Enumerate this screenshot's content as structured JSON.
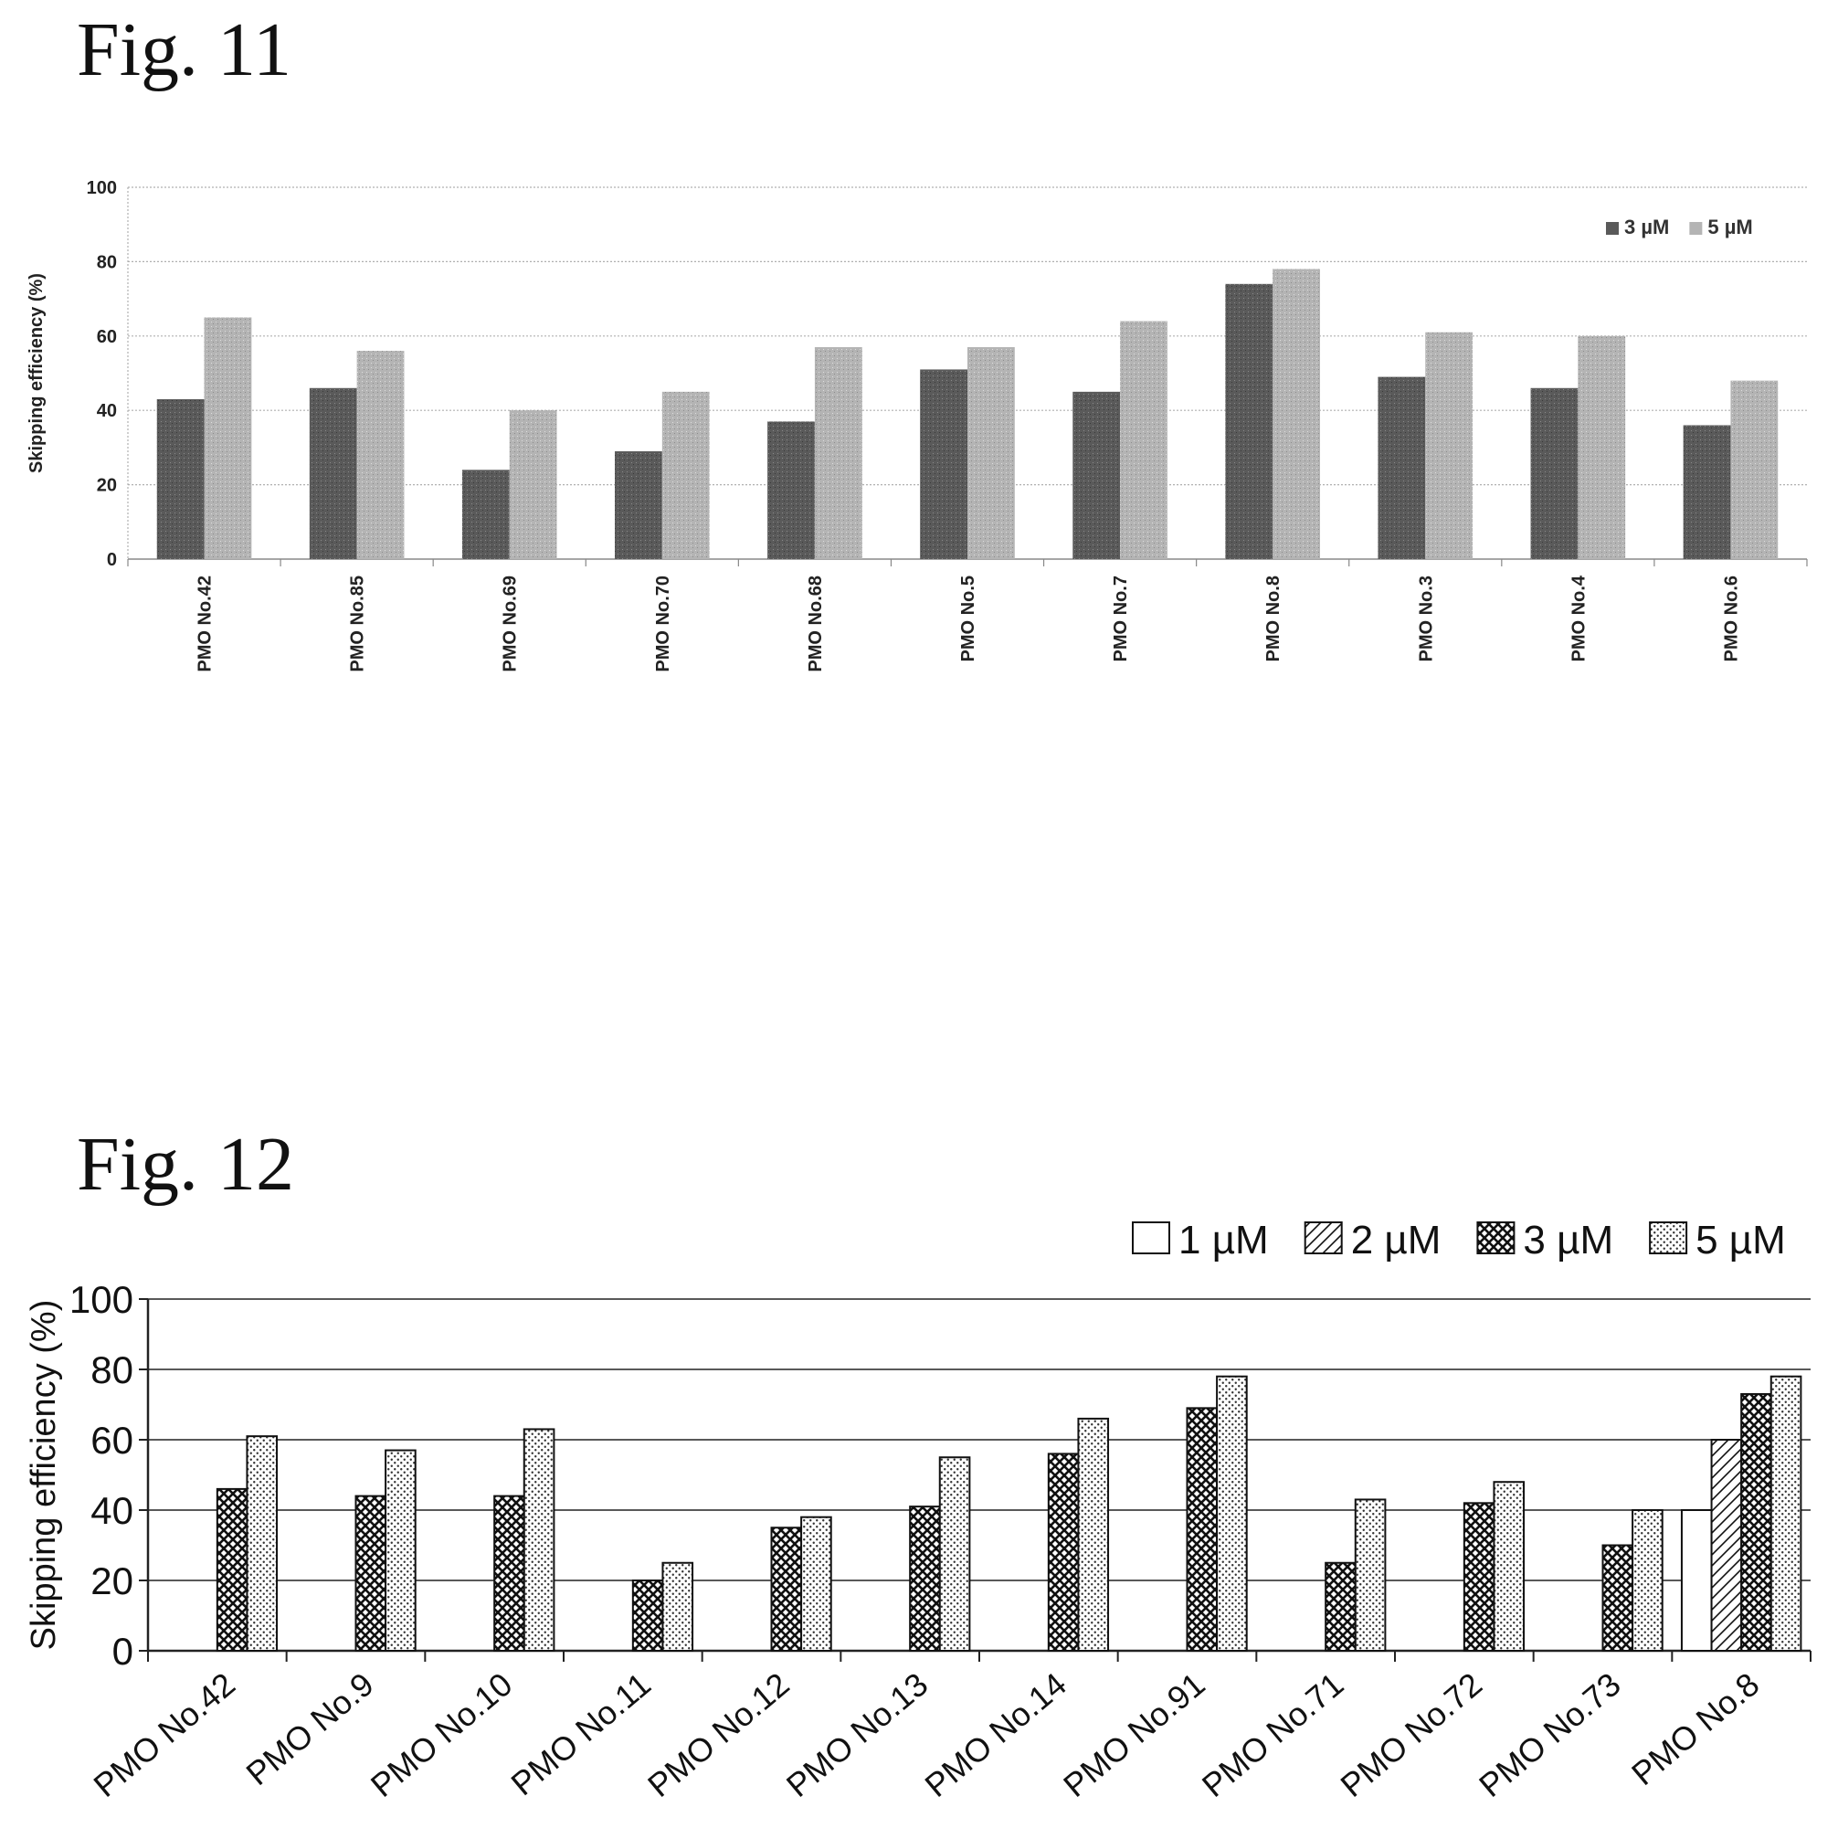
{
  "figures": [
    {
      "label": "Fig. 11"
    },
    {
      "label": "Fig. 12"
    }
  ],
  "colors": {
    "fig11_3uM": "#5a5a5a",
    "fig11_5uM": "#b4b4b4",
    "fig11_grid": "#b0b0b0",
    "fig12_grid": "#222222",
    "axis": "#222222"
  },
  "chart_data": [
    {
      "type": "bar",
      "figure": "Fig. 11",
      "categories": [
        "PMO No.42",
        "PMO No.85",
        "PMO No.69",
        "PMO No.70",
        "PMO No.68",
        "PMO No.5",
        "PMO No.7",
        "PMO No.8",
        "PMO No.3",
        "PMO No.4",
        "PMO No.6"
      ],
      "series": [
        {
          "name": "3 µM",
          "values": [
            43,
            46,
            24,
            29,
            37,
            51,
            45,
            74,
            49,
            46,
            36
          ]
        },
        {
          "name": "5 µM",
          "values": [
            65,
            56,
            40,
            45,
            57,
            57,
            64,
            78,
            61,
            60,
            48
          ]
        }
      ],
      "ylabel": "Skipping efficiency (%)",
      "ylim": [
        0,
        100
      ],
      "yticks": [
        "0",
        "20",
        "40",
        "60",
        "80",
        "100"
      ],
      "grid": true,
      "legend_position": "top-right"
    },
    {
      "type": "bar",
      "figure": "Fig. 12",
      "categories": [
        "PMO No.42",
        "PMO No.9",
        "PMO No.10",
        "PMO No.11",
        "PMO No.12",
        "PMO No.13",
        "PMO No.14",
        "PMO No.91",
        "PMO No.71",
        "PMO No.72",
        "PMO No.73",
        "PMO No.8"
      ],
      "series": [
        {
          "name": "1 µM",
          "pattern": "empty",
          "values": [
            null,
            null,
            null,
            null,
            null,
            null,
            null,
            null,
            null,
            null,
            null,
            40
          ]
        },
        {
          "name": "2 µM",
          "pattern": "hatch",
          "values": [
            null,
            null,
            null,
            null,
            null,
            null,
            null,
            null,
            null,
            null,
            null,
            60
          ]
        },
        {
          "name": "3 µM",
          "pattern": "crosshatch",
          "values": [
            46,
            44,
            44,
            20,
            35,
            41,
            56,
            69,
            25,
            42,
            30,
            73
          ]
        },
        {
          "name": "5 µM",
          "pattern": "dots",
          "values": [
            61,
            57,
            63,
            25,
            38,
            55,
            66,
            78,
            43,
            48,
            40,
            78
          ]
        }
      ],
      "ylabel": "Skipping efficiency (%)",
      "ylim": [
        0,
        100
      ],
      "yticks": [
        "0",
        "20",
        "40",
        "60",
        "80",
        "100"
      ],
      "grid": true,
      "legend_position": "top-right"
    }
  ]
}
